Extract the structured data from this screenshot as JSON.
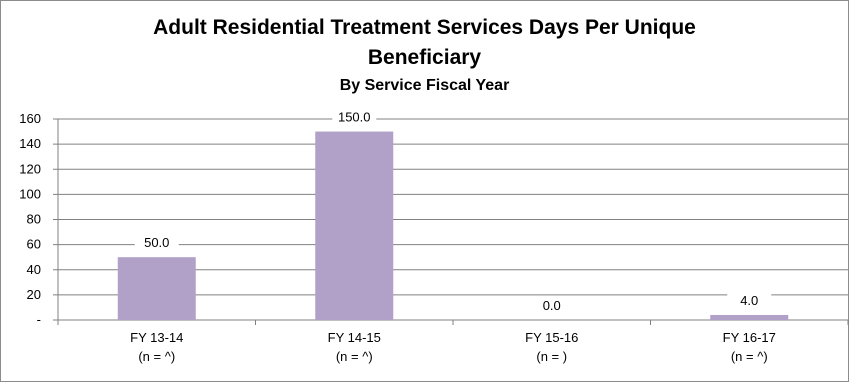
{
  "chart_data": {
    "type": "bar",
    "title": "Adult Residential Treatment Services Days Per Unique",
    "title_line2": "Beneficiary",
    "subtitle": "By Service Fiscal Year",
    "categories": [
      "FY 13-14",
      "FY 14-15",
      "FY 15-16",
      "FY 16-17"
    ],
    "category_sublabels": [
      "(n = ^)",
      "(n = ^)",
      "(n = )",
      "(n = ^)"
    ],
    "values": [
      50.0,
      150.0,
      0.0,
      4.0
    ],
    "data_labels": [
      "50.0",
      "150.0",
      "0.0",
      "4.0"
    ],
    "ylim": [
      0,
      160
    ],
    "yticks": [
      0,
      20,
      40,
      60,
      80,
      100,
      120,
      140,
      160
    ],
    "ytick_labels": [
      "-",
      "20",
      "40",
      "60",
      "80",
      "100",
      "120",
      "140",
      "160"
    ],
    "xlabel": "",
    "ylabel": "",
    "grid": true,
    "legend": "none",
    "bar_color": "#b1a0c7",
    "grid_color": "#808080"
  }
}
